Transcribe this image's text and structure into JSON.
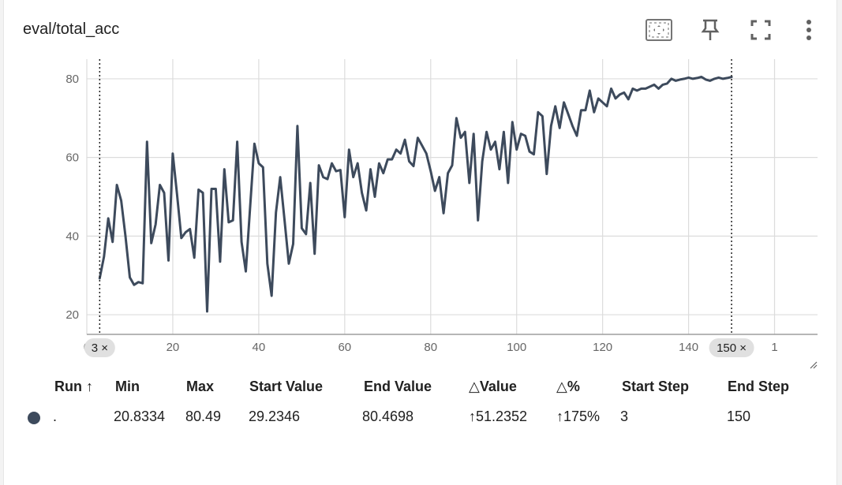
{
  "header": {
    "title": "eval/total_acc"
  },
  "toolbar": {
    "icons": [
      "fit-domain-icon",
      "pin-icon",
      "fullscreen-icon",
      "more-vert-icon"
    ]
  },
  "colors": {
    "series": "#3d4a5c",
    "grid": "#dcdcdc",
    "axis": "#9e9e9e",
    "chip_bg": "#e0e0e0"
  },
  "chart_data": {
    "type": "line",
    "title": "eval/total_acc",
    "xlim": [
      0,
      170
    ],
    "ylim": [
      15,
      85
    ],
    "x_ticks": [
      "0",
      "20",
      "40",
      "60",
      "80",
      "100",
      "120",
      "140",
      "1"
    ],
    "y_ticks": [
      "20",
      "40",
      "60",
      "80"
    ],
    "grid": true,
    "step_range": {
      "start": 3,
      "end": 150,
      "start_label": "3 ×",
      "end_label": "150 ×"
    },
    "series": [
      {
        "name": ".",
        "x": [
          3,
          4,
          5,
          6,
          7,
          8,
          9,
          10,
          11,
          12,
          13,
          14,
          15,
          16,
          17,
          18,
          19,
          20,
          21,
          22,
          23,
          24,
          25,
          26,
          27,
          28,
          29,
          30,
          31,
          32,
          33,
          34,
          35,
          36,
          37,
          38,
          39,
          40,
          41,
          42,
          43,
          44,
          45,
          46,
          47,
          48,
          49,
          50,
          51,
          52,
          53,
          54,
          55,
          56,
          57,
          58,
          59,
          60,
          61,
          62,
          63,
          64,
          65,
          66,
          67,
          68,
          69,
          70,
          71,
          72,
          73,
          74,
          75,
          76,
          77,
          78,
          79,
          80,
          81,
          82,
          83,
          84,
          85,
          86,
          87,
          88,
          89,
          90,
          91,
          92,
          93,
          94,
          95,
          96,
          97,
          98,
          99,
          100,
          101,
          102,
          103,
          104,
          105,
          106,
          107,
          108,
          109,
          110,
          111,
          112,
          113,
          114,
          115,
          116,
          117,
          118,
          119,
          120,
          121,
          122,
          123,
          124,
          125,
          126,
          127,
          128,
          129,
          130,
          131,
          132,
          133,
          134,
          135,
          136,
          137,
          138,
          139,
          140,
          141,
          142,
          143,
          144,
          145,
          146,
          147,
          148,
          149,
          150
        ],
        "values": [
          29.2346,
          34.8,
          44.5,
          38.5,
          53.0,
          49.0,
          40.0,
          29.5,
          27.6,
          28.3,
          28.0,
          64.0,
          38.2,
          43.0,
          53.0,
          51.0,
          33.8,
          61.0,
          50.5,
          39.5,
          41.0,
          41.8,
          34.5,
          51.8,
          51.0,
          20.8334,
          52.0,
          52.0,
          33.5,
          57.0,
          43.5,
          44.0,
          64.0,
          38.5,
          31.0,
          47.5,
          63.5,
          58.5,
          57.5,
          33.0,
          24.8,
          46.0,
          55.0,
          44.0,
          33.0,
          38.0,
          68.0,
          42.0,
          40.5,
          53.5,
          35.5,
          58.0,
          55.0,
          54.5,
          58.5,
          56.5,
          56.8,
          44.8,
          62.0,
          55.0,
          58.5,
          51.0,
          46.5,
          57.0,
          50.0,
          58.5,
          56.0,
          59.5,
          59.5,
          62.0,
          61.0,
          64.5,
          59.0,
          57.8,
          65.0,
          63.0,
          61.0,
          56.5,
          51.5,
          55.0,
          45.8,
          56.0,
          58.0,
          70.0,
          65.0,
          66.5,
          53.5,
          66.0,
          44.0,
          59.0,
          66.5,
          62.0,
          64.0,
          57.0,
          66.5,
          53.5,
          69.0,
          62.0,
          66.0,
          65.5,
          61.5,
          60.8,
          71.5,
          70.5,
          55.8,
          68.0,
          73.0,
          67.5,
          74.0,
          71.0,
          68.0,
          65.5,
          72.0,
          72.0,
          77.0,
          71.5,
          75.0,
          74.0,
          73.0,
          77.5,
          75.0,
          76.0,
          76.5,
          74.8,
          77.5,
          77.0,
          77.5,
          77.5,
          78.0,
          78.5,
          77.5,
          78.5,
          78.8,
          80.0,
          79.5,
          79.8,
          80.0,
          80.3,
          80.0,
          80.2,
          80.49,
          79.8,
          79.5,
          80.0,
          80.3,
          80.0,
          80.2,
          80.4698
        ]
      }
    ]
  },
  "table": {
    "headers": {
      "run": "Run ↑",
      "min": "Min",
      "max": "Max",
      "start_value": "Start Value",
      "end_value": "End Value",
      "delta_value": "△Value",
      "delta_pct": "△%",
      "start_step": "Start Step",
      "end_step": "End Step"
    },
    "row": {
      "run": ".",
      "min": "20.8334",
      "max": "80.49",
      "start_value": "29.2346",
      "end_value": "80.4698",
      "delta_value": "↑51.2352",
      "delta_pct": "↑175%",
      "start_step": "3",
      "end_step": "150"
    }
  }
}
